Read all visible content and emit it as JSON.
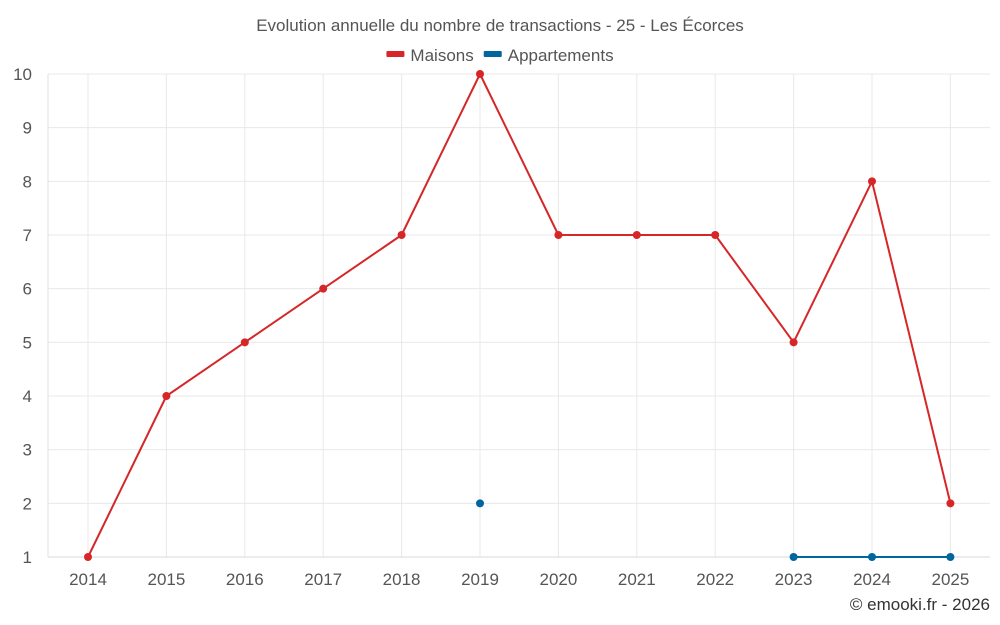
{
  "chart_data": {
    "type": "line",
    "title": "Evolution annuelle du nombre de transactions - 25 - Les Écorces",
    "categories": [
      "2014",
      "2015",
      "2016",
      "2017",
      "2018",
      "2019",
      "2020",
      "2021",
      "2022",
      "2023",
      "2024",
      "2025"
    ],
    "ylim": [
      1,
      10
    ],
    "yticks": [
      1,
      2,
      3,
      4,
      5,
      6,
      7,
      8,
      9,
      10
    ],
    "grid": true,
    "legend_position": "top-center",
    "series": [
      {
        "name": "Maisons",
        "color": "#d62728",
        "values": [
          1,
          4,
          5,
          6,
          7,
          10,
          7,
          7,
          7,
          5,
          8,
          2
        ]
      },
      {
        "name": "Appartements",
        "color": "#00679e",
        "values": [
          null,
          null,
          null,
          null,
          null,
          2,
          null,
          null,
          null,
          1,
          1,
          1
        ]
      }
    ],
    "credit": "© emooki.fr - 2026"
  }
}
